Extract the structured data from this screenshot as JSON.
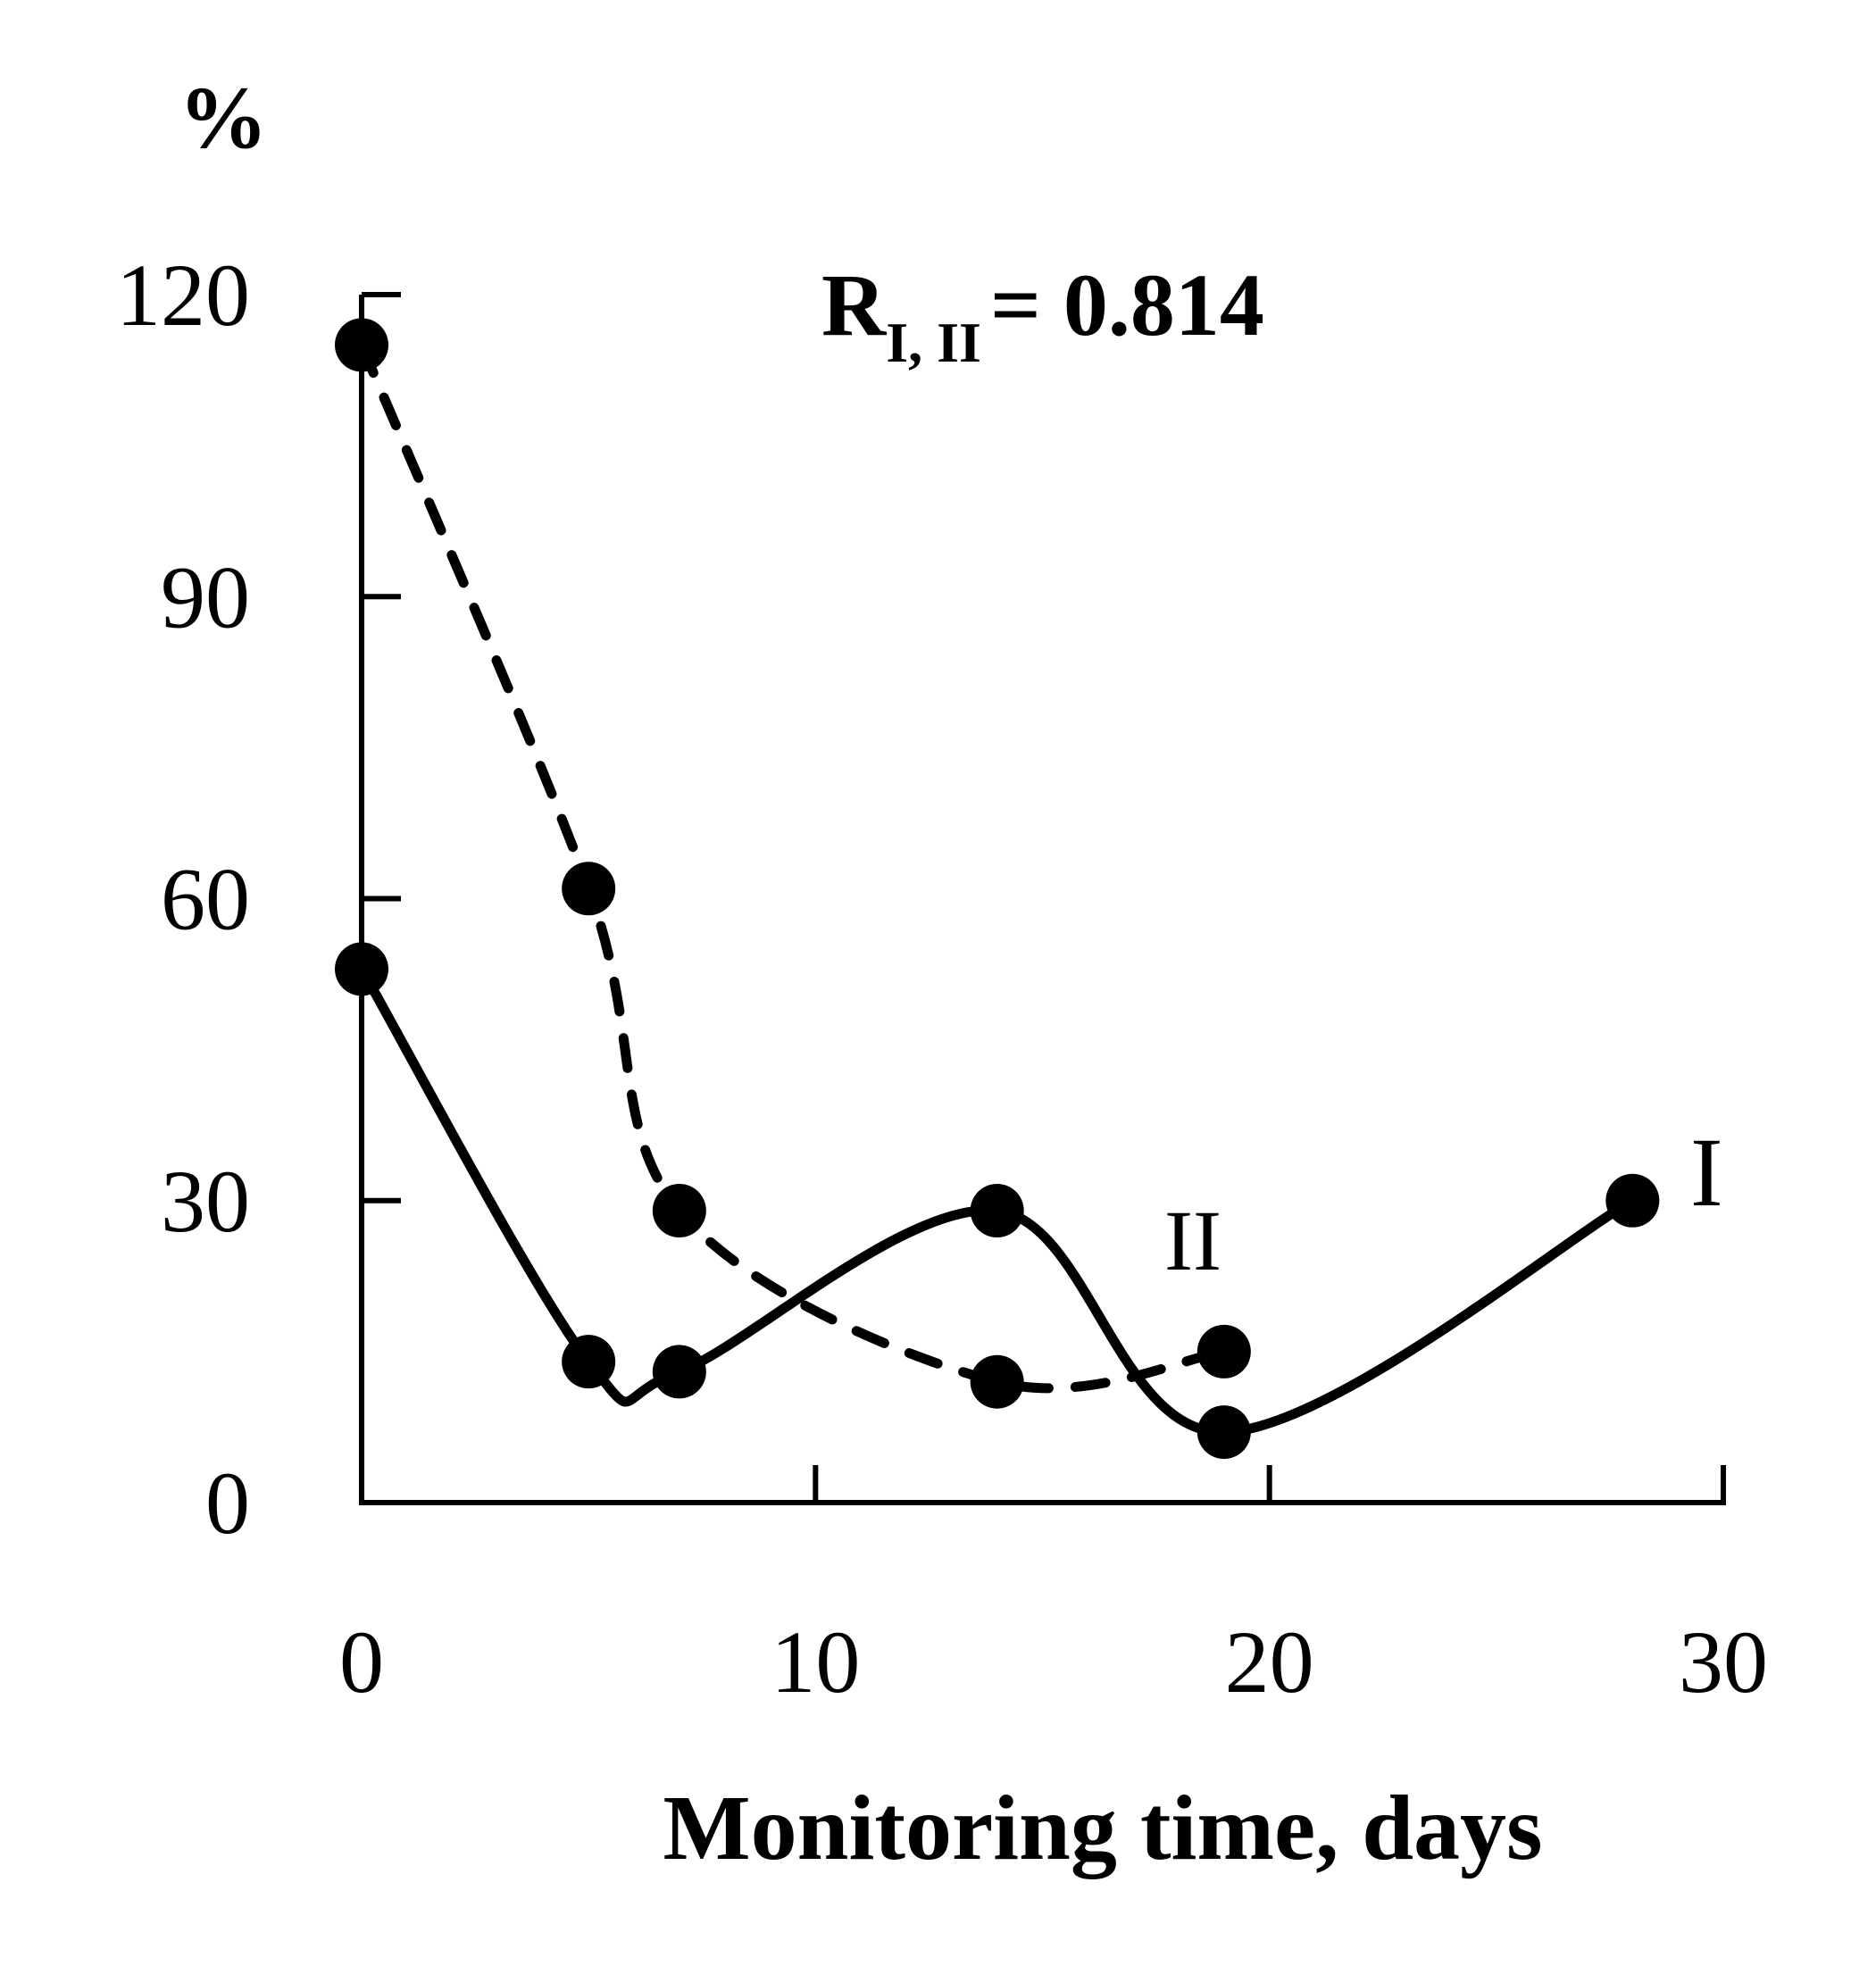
{
  "chart_data": {
    "type": "line",
    "annotation": {
      "main": "R",
      "subscript": "I, II",
      "rest": "= 0.814"
    },
    "xlabel": "Monitoring time, days",
    "ylabel": "%",
    "xlim": [
      0,
      30
    ],
    "ylim": [
      0,
      120
    ],
    "xticks": [
      0,
      10,
      20,
      30
    ],
    "yticks": [
      0,
      30,
      60,
      90,
      120
    ],
    "grid": false,
    "series": [
      {
        "name": "I",
        "style": "solid",
        "color": "#000000",
        "x": [
          0,
          5,
          7,
          14,
          19,
          28
        ],
        "y": [
          53,
          14,
          13,
          29,
          7,
          30
        ]
      },
      {
        "name": "II",
        "style": "dashed",
        "color": "#000000",
        "x": [
          0,
          5,
          7,
          14,
          19
        ],
        "y": [
          115,
          61,
          29,
          12,
          15
        ]
      }
    ]
  }
}
